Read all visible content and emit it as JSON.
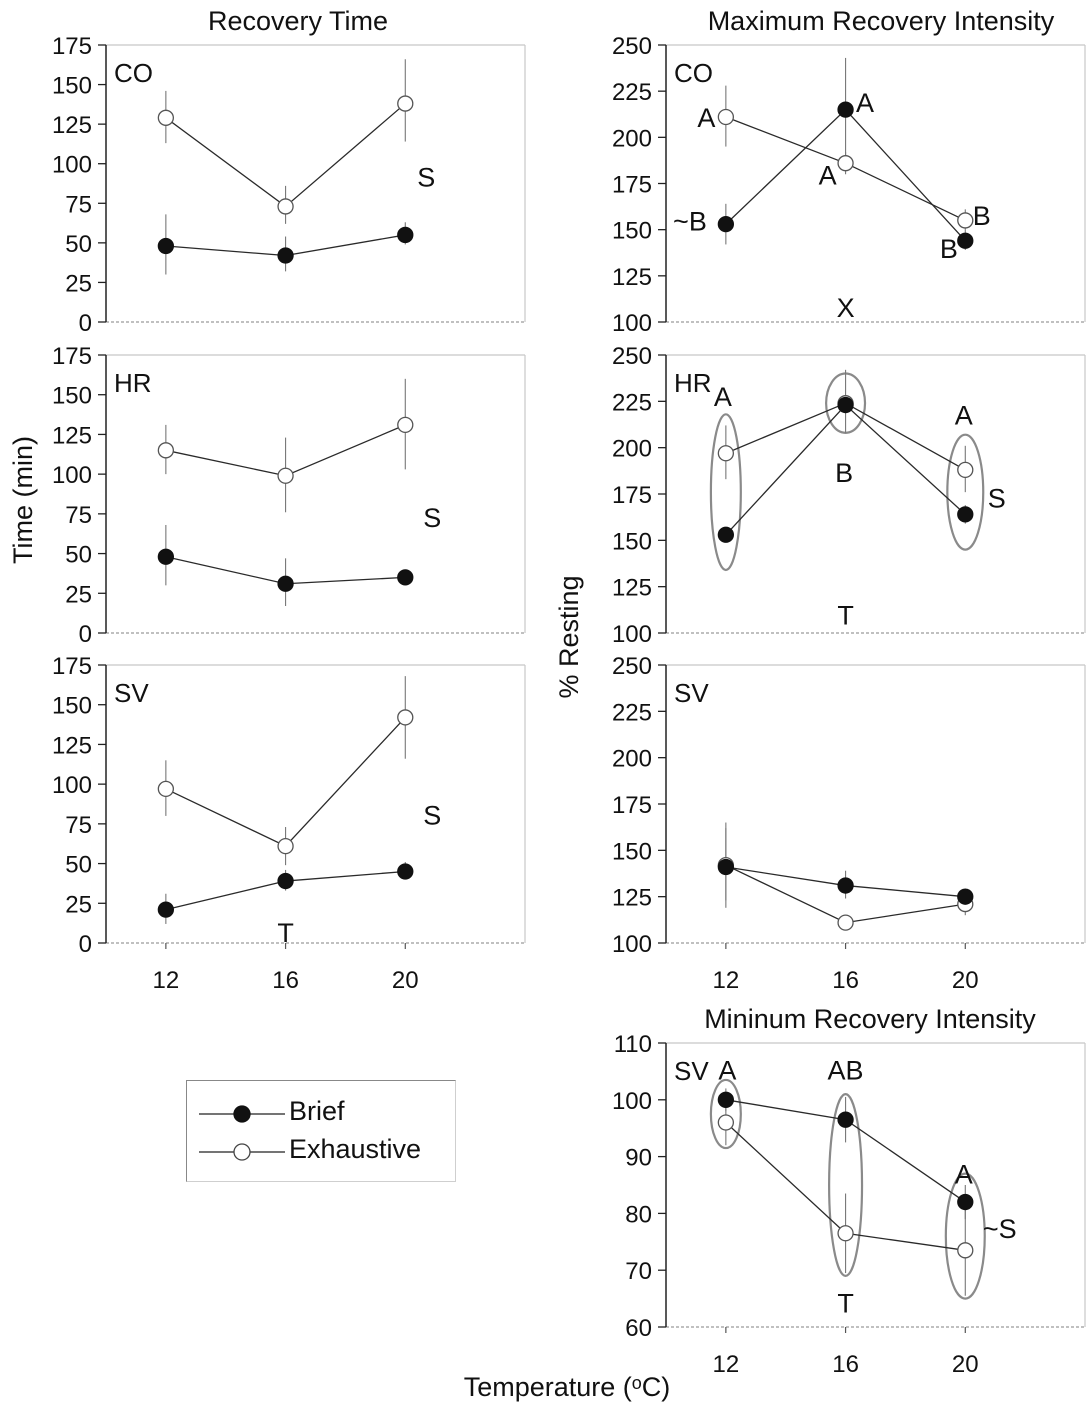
{
  "figure": {
    "col1_title": "Recovery Time",
    "col2_title": "Maximum Recovery Intensity",
    "col3_title": "Mininum Recovery Intensity",
    "ylabel_time": "Time (min)",
    "ylabel_resting": "% Resting",
    "xlabel": "Temperature (°C)"
  },
  "legend": {
    "items": [
      {
        "label": "Brief",
        "marker": "filled-circle"
      },
      {
        "label": "Exhaustive",
        "marker": "open-circle"
      }
    ]
  },
  "chart_data": [
    {
      "type": "line",
      "panel": "CO",
      "x": [
        12,
        16,
        20
      ],
      "xticks": [],
      "xlim": [
        10,
        24
      ],
      "ylim": [
        0,
        175
      ],
      "yticks": [
        0,
        25,
        50,
        75,
        100,
        125,
        150,
        175
      ],
      "series": [
        {
          "name": "Brief",
          "marker": "filled",
          "values": [
            48,
            42,
            55
          ],
          "errors": [
            [
              20,
              18
            ],
            [
              12,
              10
            ],
            [
              8,
              6
            ]
          ]
        },
        {
          "name": "Exhaustive",
          "marker": "open",
          "values": [
            129,
            73,
            138
          ],
          "errors": [
            [
              17,
              16
            ],
            [
              13,
              11
            ],
            [
              28,
              24
            ]
          ]
        }
      ],
      "annotations": [
        {
          "text": "S",
          "x": 20.7,
          "y": 92
        }
      ]
    },
    {
      "type": "line",
      "panel": "HR",
      "x": [
        12,
        16,
        20
      ],
      "xticks": [],
      "xlim": [
        10,
        24
      ],
      "ylim": [
        0,
        175
      ],
      "yticks": [
        0,
        25,
        50,
        75,
        100,
        125,
        150,
        175
      ],
      "series": [
        {
          "name": "Brief",
          "marker": "filled",
          "values": [
            48,
            31,
            35
          ],
          "errors": [
            [
              20,
              18
            ],
            [
              16,
              14
            ],
            [
              5,
              4
            ]
          ]
        },
        {
          "name": "Exhaustive",
          "marker": "open",
          "values": [
            115,
            99,
            131
          ],
          "errors": [
            [
              16,
              15
            ],
            [
              24,
              23
            ],
            [
              29,
              28
            ]
          ]
        }
      ],
      "annotations": [
        {
          "text": "S",
          "x": 20.9,
          "y": 73
        }
      ]
    },
    {
      "type": "line",
      "panel": "SV",
      "x": [
        12,
        16,
        20
      ],
      "xticks": [
        12,
        16,
        20
      ],
      "xlim": [
        10,
        24
      ],
      "ylim": [
        0,
        175
      ],
      "yticks": [
        0,
        25,
        50,
        75,
        100,
        125,
        150,
        175
      ],
      "series": [
        {
          "name": "Brief",
          "marker": "filled",
          "values": [
            21,
            39,
            45
          ],
          "errors": [
            [
              10,
              9
            ],
            [
              7,
              6
            ],
            [
              6,
              5
            ]
          ]
        },
        {
          "name": "Exhaustive",
          "marker": "open",
          "values": [
            97,
            61,
            142
          ],
          "errors": [
            [
              18,
              17
            ],
            [
              12,
              12
            ],
            [
              26,
              26
            ]
          ]
        }
      ],
      "annotations": [
        {
          "text": "S",
          "x": 20.9,
          "y": 81
        },
        {
          "text": "T",
          "x": 16,
          "y": 7
        }
      ]
    },
    {
      "type": "line",
      "panel": "CO",
      "x": [
        12,
        16,
        20
      ],
      "xticks": [],
      "xlim": [
        10,
        24
      ],
      "ylim": [
        100,
        250
      ],
      "yticks": [
        100,
        125,
        150,
        175,
        200,
        225,
        250
      ],
      "series": [
        {
          "name": "Brief",
          "marker": "filled",
          "values": [
            153,
            215,
            144
          ],
          "errors": [
            [
              11,
              11
            ],
            [
              28,
              27
            ],
            [
              6,
              5
            ]
          ]
        },
        {
          "name": "Exhaustive",
          "marker": "open",
          "values": [
            211,
            186,
            155
          ],
          "errors": [
            [
              17,
              16
            ],
            [
              6,
              6
            ],
            [
              6,
              5
            ]
          ]
        }
      ],
      "annotations": [
        {
          "text": "A",
          "x": 11.35,
          "y": 211
        },
        {
          "text": "~B",
          "x": 10.8,
          "y": 155
        },
        {
          "text": "A",
          "x": 16.65,
          "y": 219
        },
        {
          "text": "A",
          "x": 15.4,
          "y": 180
        },
        {
          "text": "B",
          "x": 20.55,
          "y": 158
        },
        {
          "text": "B",
          "x": 19.45,
          "y": 140
        },
        {
          "text": "X",
          "x": 16,
          "y": 108
        }
      ]
    },
    {
      "type": "line",
      "panel": "HR",
      "x": [
        12,
        16,
        20
      ],
      "xticks": [],
      "xlim": [
        10,
        24
      ],
      "ylim": [
        100,
        250
      ],
      "yticks": [
        100,
        125,
        150,
        175,
        200,
        225,
        250
      ],
      "series": [
        {
          "name": "Brief",
          "marker": "filled",
          "values": [
            153,
            223,
            164
          ],
          "errors": [
            [
              3,
              3
            ],
            [
              3,
              3
            ],
            [
              5,
              5
            ]
          ]
        },
        {
          "name": "Exhaustive",
          "marker": "open",
          "values": [
            197,
            224,
            188
          ],
          "errors": [
            [
              15,
              14
            ],
            [
              18,
              16
            ],
            [
              13,
              12
            ]
          ]
        }
      ],
      "ellipses": [
        {
          "cx": 12,
          "cy": 176,
          "rx": 0.5,
          "ry": 42
        },
        {
          "cx": 16,
          "cy": 224,
          "rx": 0.65,
          "ry": 16
        },
        {
          "cx": 20,
          "cy": 176,
          "rx": 0.6,
          "ry": 31
        }
      ],
      "annotations": [
        {
          "text": "A",
          "x": 11.9,
          "y": 228
        },
        {
          "text": "B",
          "x": 15.95,
          "y": 187
        },
        {
          "text": "A",
          "x": 19.95,
          "y": 218
        },
        {
          "text": "S",
          "x": 21.05,
          "y": 173
        },
        {
          "text": "T",
          "x": 16,
          "y": 110
        }
      ]
    },
    {
      "type": "line",
      "panel": "SV",
      "x": [
        12,
        16,
        20
      ],
      "xticks": [
        12,
        16,
        20
      ],
      "xlim": [
        10,
        24
      ],
      "ylim": [
        100,
        250
      ],
      "yticks": [
        100,
        125,
        150,
        175,
        200,
        225,
        250
      ],
      "series": [
        {
          "name": "Brief",
          "marker": "filled",
          "values": [
            141,
            131,
            125
          ],
          "errors": [
            [
              24,
              22
            ],
            [
              8,
              7
            ],
            [
              4,
              4
            ]
          ]
        },
        {
          "name": "Exhaustive",
          "marker": "open",
          "values": [
            142,
            111,
            121
          ],
          "errors": [
            [
              20,
              19
            ],
            [
              3,
              3
            ],
            [
              6,
              6
            ]
          ]
        }
      ],
      "annotations": []
    },
    {
      "type": "line",
      "panel": "SV",
      "x": [
        12,
        16,
        20
      ],
      "xticks": [
        12,
        16,
        20
      ],
      "xlim": [
        10,
        24
      ],
      "ylim": [
        60,
        110
      ],
      "yticks": [
        60,
        70,
        80,
        90,
        100,
        110
      ],
      "series": [
        {
          "name": "Brief",
          "marker": "filled",
          "values": [
            100,
            96.5,
            82
          ],
          "errors": [
            [
              2,
              2
            ],
            [
              4,
              4
            ],
            [
              3,
              3
            ]
          ]
        },
        {
          "name": "Exhaustive",
          "marker": "open",
          "values": [
            96,
            76.5,
            73.5
          ],
          "errors": [
            [
              4,
              4
            ],
            [
              7,
              7
            ],
            [
              8,
              8
            ]
          ]
        }
      ],
      "ellipses": [
        {
          "cx": 12,
          "cy": 97.5,
          "rx": 0.5,
          "ry": 6
        },
        {
          "cx": 16,
          "cy": 85,
          "rx": 0.55,
          "ry": 16
        },
        {
          "cx": 20,
          "cy": 76,
          "rx": 0.65,
          "ry": 11
        }
      ],
      "annotations": [
        {
          "text": "A",
          "x": 12.05,
          "y": 105.3
        },
        {
          "text": "AB",
          "x": 16,
          "y": 105.3
        },
        {
          "text": "A",
          "x": 19.95,
          "y": 87
        },
        {
          "text": "~S",
          "x": 21.15,
          "y": 77.4
        },
        {
          "text": "T",
          "x": 16,
          "y": 64.3
        }
      ]
    }
  ]
}
